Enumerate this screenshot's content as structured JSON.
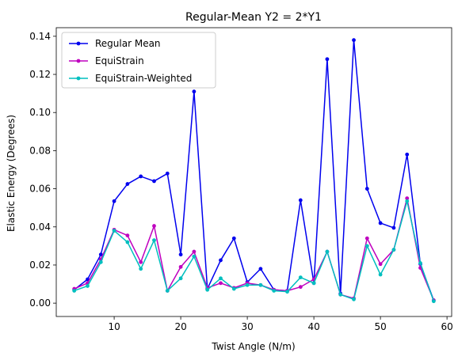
{
  "chart_data": {
    "type": "line",
    "title": "Regular-Mean Y2 = 2*Y1",
    "xlabel": "Twist Angle (N/m)",
    "ylabel": "Elastic Energy (Degrees)",
    "xlim": [
      1.3,
      60.7
    ],
    "ylim": [
      -0.007,
      0.1445
    ],
    "xticks": [
      10,
      20,
      30,
      40,
      50,
      60
    ],
    "xtick_labels": [
      "10",
      "20",
      "30",
      "40",
      "50",
      "60"
    ],
    "yticks": [
      0.0,
      0.02,
      0.04,
      0.06,
      0.08,
      0.1,
      0.12,
      0.14
    ],
    "ytick_labels": [
      "0.00",
      "0.02",
      "0.04",
      "0.06",
      "0.08",
      "0.10",
      "0.12",
      "0.14"
    ],
    "grid": false,
    "legend_position": "top-left",
    "x": [
      4,
      6,
      8,
      10,
      12,
      14,
      16,
      18,
      20,
      22,
      24,
      26,
      28,
      30,
      32,
      34,
      36,
      38,
      40,
      42,
      44,
      46,
      48,
      50,
      52,
      54,
      56,
      58
    ],
    "series": [
      {
        "name": "Regular Mean",
        "color": "#0000ee",
        "values": [
          0.007,
          0.0125,
          0.0255,
          0.0535,
          0.0625,
          0.0665,
          0.064,
          0.068,
          0.0255,
          0.111,
          0.0075,
          0.0225,
          0.034,
          0.011,
          0.018,
          0.007,
          0.0065,
          0.054,
          0.0105,
          0.128,
          0.005,
          0.138,
          0.06,
          0.042,
          0.0395,
          0.078,
          0.0205,
          0.0015
        ]
      },
      {
        "name": "EquiStrain",
        "color": "#bf00bf",
        "values": [
          0.0075,
          0.0105,
          0.023,
          0.0385,
          0.0355,
          0.0215,
          0.0405,
          0.0065,
          0.019,
          0.027,
          0.008,
          0.0105,
          0.008,
          0.0105,
          0.0095,
          0.007,
          0.0065,
          0.0085,
          0.0125,
          0.027,
          0.0045,
          0.0025,
          0.034,
          0.0205,
          0.028,
          0.055,
          0.0185,
          0.0015
        ]
      },
      {
        "name": "EquiStrain-Weighted",
        "color": "#00bfbf",
        "values": [
          0.0065,
          0.009,
          0.0215,
          0.038,
          0.032,
          0.018,
          0.033,
          0.0065,
          0.013,
          0.0245,
          0.007,
          0.013,
          0.0075,
          0.0095,
          0.0095,
          0.0065,
          0.006,
          0.0135,
          0.0105,
          0.027,
          0.0045,
          0.002,
          0.03,
          0.015,
          0.028,
          0.0535,
          0.021,
          0.001
        ]
      }
    ]
  }
}
